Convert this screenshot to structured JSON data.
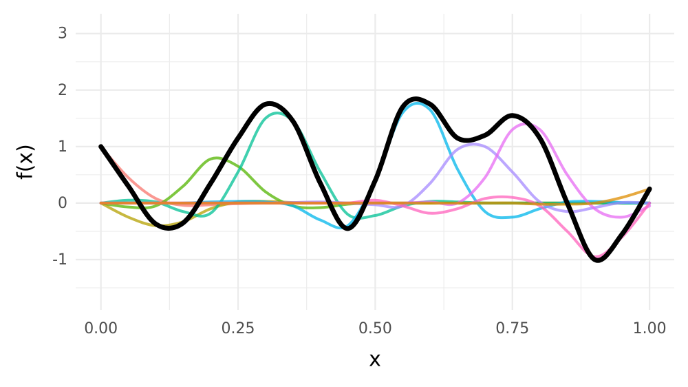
{
  "chart_data": {
    "type": "line",
    "x_label": "x",
    "y_label": "f(x)",
    "x": [
      0,
      0.05,
      0.1,
      0.15,
      0.2,
      0.25,
      0.3,
      0.35,
      0.4,
      0.45,
      0.5,
      0.55,
      0.6,
      0.65,
      0.7,
      0.75,
      0.8,
      0.85,
      0.9,
      0.95,
      1
    ],
    "series": [
      {
        "color": "#F8766D",
        "values": [
          1,
          0.45,
          0.08,
          -0.04,
          -0.03,
          -0.01,
          0,
          0,
          0,
          0,
          0,
          0,
          0,
          0,
          0,
          0,
          0,
          0,
          0,
          0,
          0
        ]
      },
      {
        "color": "#B4A000",
        "values": [
          0,
          -0.25,
          -0.4,
          -0.33,
          -0.1,
          0.02,
          0.03,
          0.01,
          0,
          0,
          0,
          0,
          0,
          0,
          0,
          0,
          0,
          0,
          0,
          0,
          0
        ]
      },
      {
        "color": "#53B400",
        "values": [
          0,
          -0.07,
          -0.05,
          0.3,
          0.78,
          0.65,
          0.2,
          -0.05,
          -0.08,
          -0.02,
          0,
          0,
          0,
          0,
          0,
          0,
          0,
          0,
          0,
          0,
          0
        ]
      },
      {
        "color": "#00C094",
        "values": [
          0,
          0.05,
          0.02,
          -0.15,
          -0.18,
          0.55,
          1.5,
          1.45,
          0.55,
          -0.2,
          -0.22,
          -0.05,
          0.03,
          0.02,
          0,
          0,
          0,
          0,
          0,
          0,
          0
        ]
      },
      {
        "color": "#00B6EB",
        "values": [
          0,
          0,
          0,
          0,
          0.02,
          0.03,
          0.02,
          -0.05,
          -0.3,
          -0.4,
          0.4,
          1.6,
          1.65,
          0.6,
          -0.15,
          -0.25,
          -0.1,
          0.02,
          0.03,
          0.01,
          0
        ]
      },
      {
        "color": "#A58AFF",
        "values": [
          0,
          0,
          0,
          0,
          0,
          0,
          0,
          0.01,
          0.02,
          0,
          -0.03,
          -0.05,
          0.35,
          0.95,
          1,
          0.55,
          0.02,
          -0.15,
          -0.08,
          0.01,
          0
        ]
      },
      {
        "color": "#E76BF3",
        "values": [
          0,
          0,
          0,
          0,
          0,
          0,
          0,
          0,
          0,
          0,
          0,
          0,
          0.02,
          0,
          0.45,
          1.3,
          1.3,
          0.5,
          -0.1,
          -0.25,
          -0.05
        ]
      },
      {
        "color": "#FF62BC",
        "values": [
          0,
          0,
          0,
          0,
          0,
          0,
          0,
          0,
          0,
          0,
          0.05,
          -0.05,
          -0.18,
          -0.1,
          0.08,
          0.1,
          -0.05,
          -0.5,
          -0.95,
          -0.6,
          0
        ]
      },
      {
        "color": "#DE8C00",
        "values": [
          0,
          0,
          0,
          0,
          0,
          0,
          0,
          0,
          0,
          0,
          0,
          0,
          0,
          0,
          0,
          0,
          -0.02,
          -0.02,
          0,
          0.1,
          0.25
        ]
      },
      {
        "color": "#000000",
        "values": [
          1,
          0.3,
          -0.37,
          -0.35,
          0.35,
          1.15,
          1.75,
          1.45,
          0.35,
          -0.45,
          0.4,
          1.7,
          1.75,
          1.15,
          1.2,
          1.55,
          1.15,
          0,
          -1,
          -0.55,
          0.25
        ]
      }
    ],
    "xlim": [
      -0.046,
      1.045
    ],
    "xticks": [
      {
        "value": 0,
        "label": "0.00"
      },
      {
        "value": 0.25,
        "label": "0.25"
      },
      {
        "value": 0.5,
        "label": "0.50"
      },
      {
        "value": 0.75,
        "label": "0.75"
      },
      {
        "value": 1,
        "label": "1.00"
      }
    ],
    "ylim": [
      -1.89,
      3.35
    ],
    "yticks": [
      -1,
      0,
      1,
      2,
      3
    ],
    "grid": true
  }
}
